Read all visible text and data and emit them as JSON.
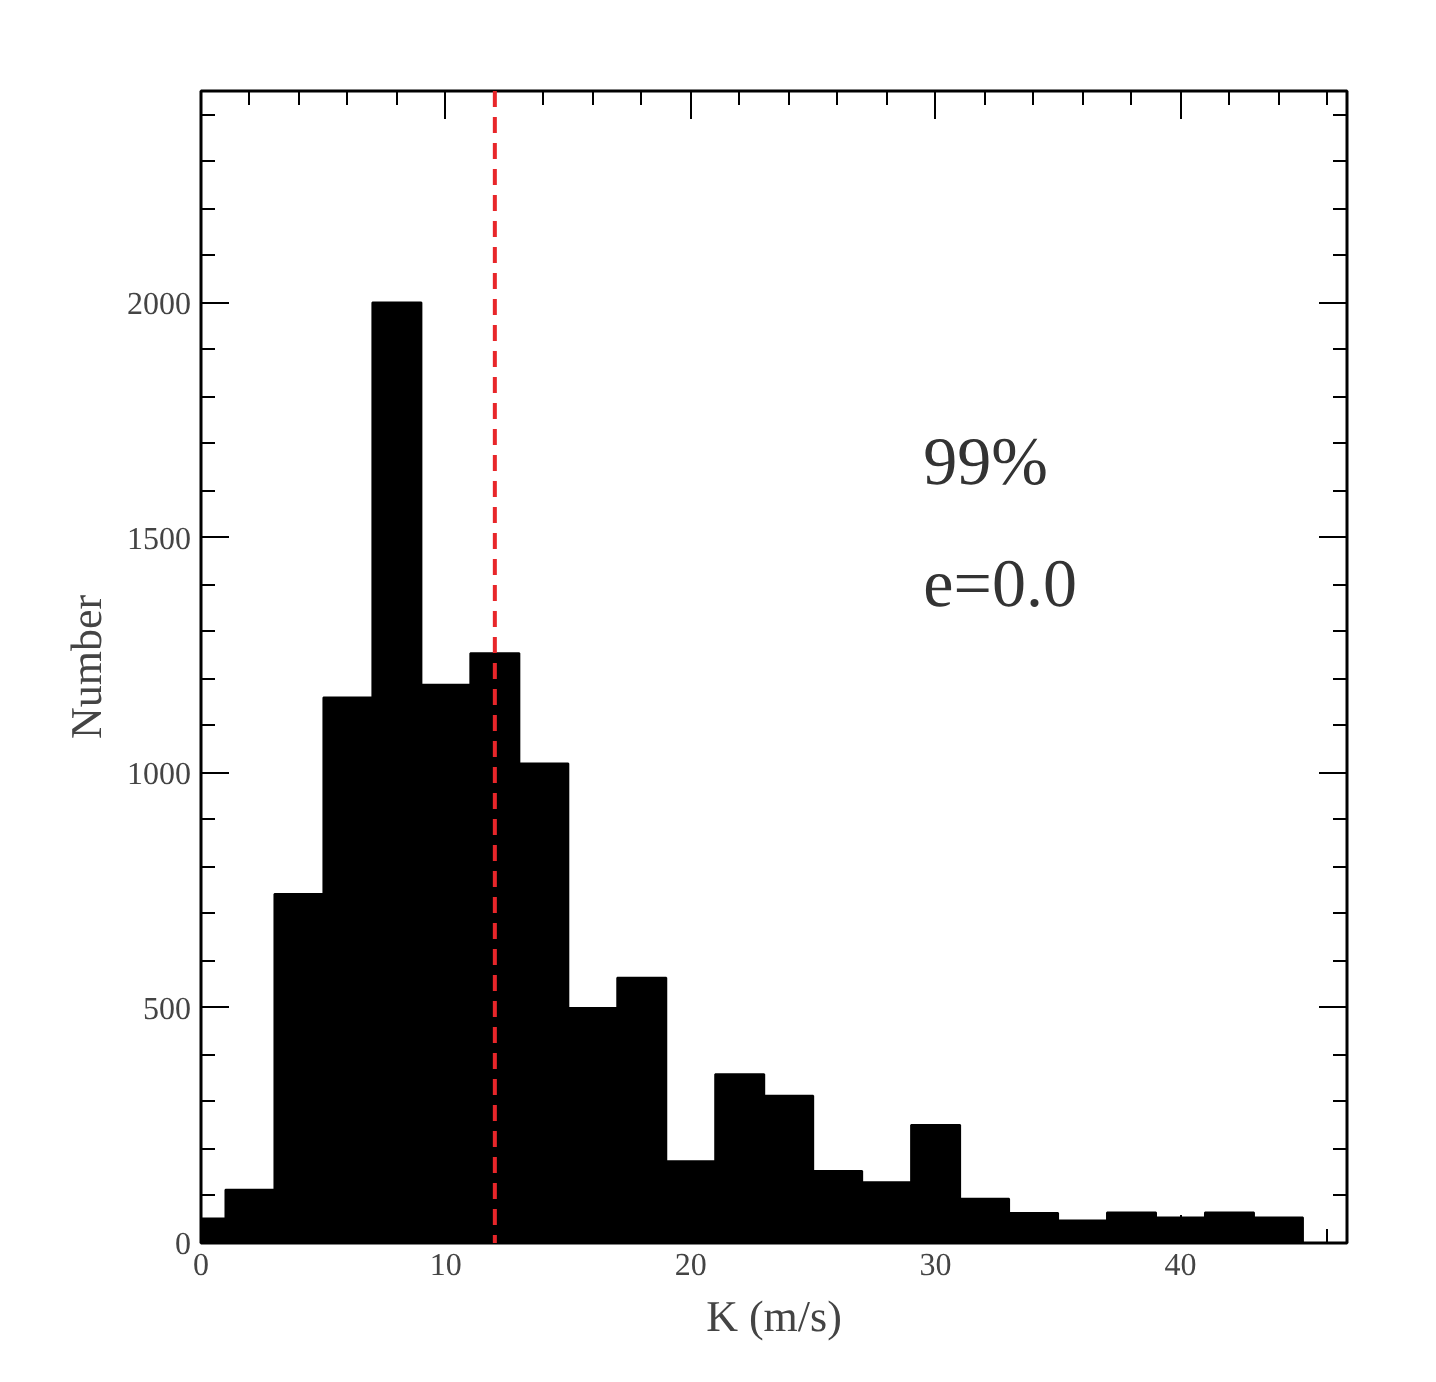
{
  "chart_data": {
    "type": "histogram",
    "xlabel": "K (m/s)",
    "ylabel": "Number",
    "bins": [
      0,
      1,
      3,
      5,
      7,
      9,
      11,
      13,
      15,
      17,
      19,
      21,
      23,
      25,
      27,
      29,
      31,
      33,
      35,
      37,
      39,
      41,
      43,
      45
    ],
    "values": [
      52,
      113,
      742,
      1160,
      2000,
      1187,
      1254,
      1020,
      500,
      564,
      174,
      359,
      313,
      153,
      129,
      251,
      94,
      64,
      48,
      65,
      54,
      65,
      54
    ],
    "color": "#000000",
    "xlim": [
      0,
      46.8
    ],
    "ylim": [
      0,
      2450
    ],
    "xticks": [
      0,
      10,
      20,
      30,
      40
    ],
    "yticks": [
      0,
      500,
      1000,
      1500,
      2000
    ],
    "grid": false,
    "ref_lines": [
      {
        "axis": "x",
        "value": 12,
        "color": "#e8262a",
        "line_style": "dashed"
      }
    ],
    "annotations": [
      "99%",
      "e=0.0"
    ]
  }
}
